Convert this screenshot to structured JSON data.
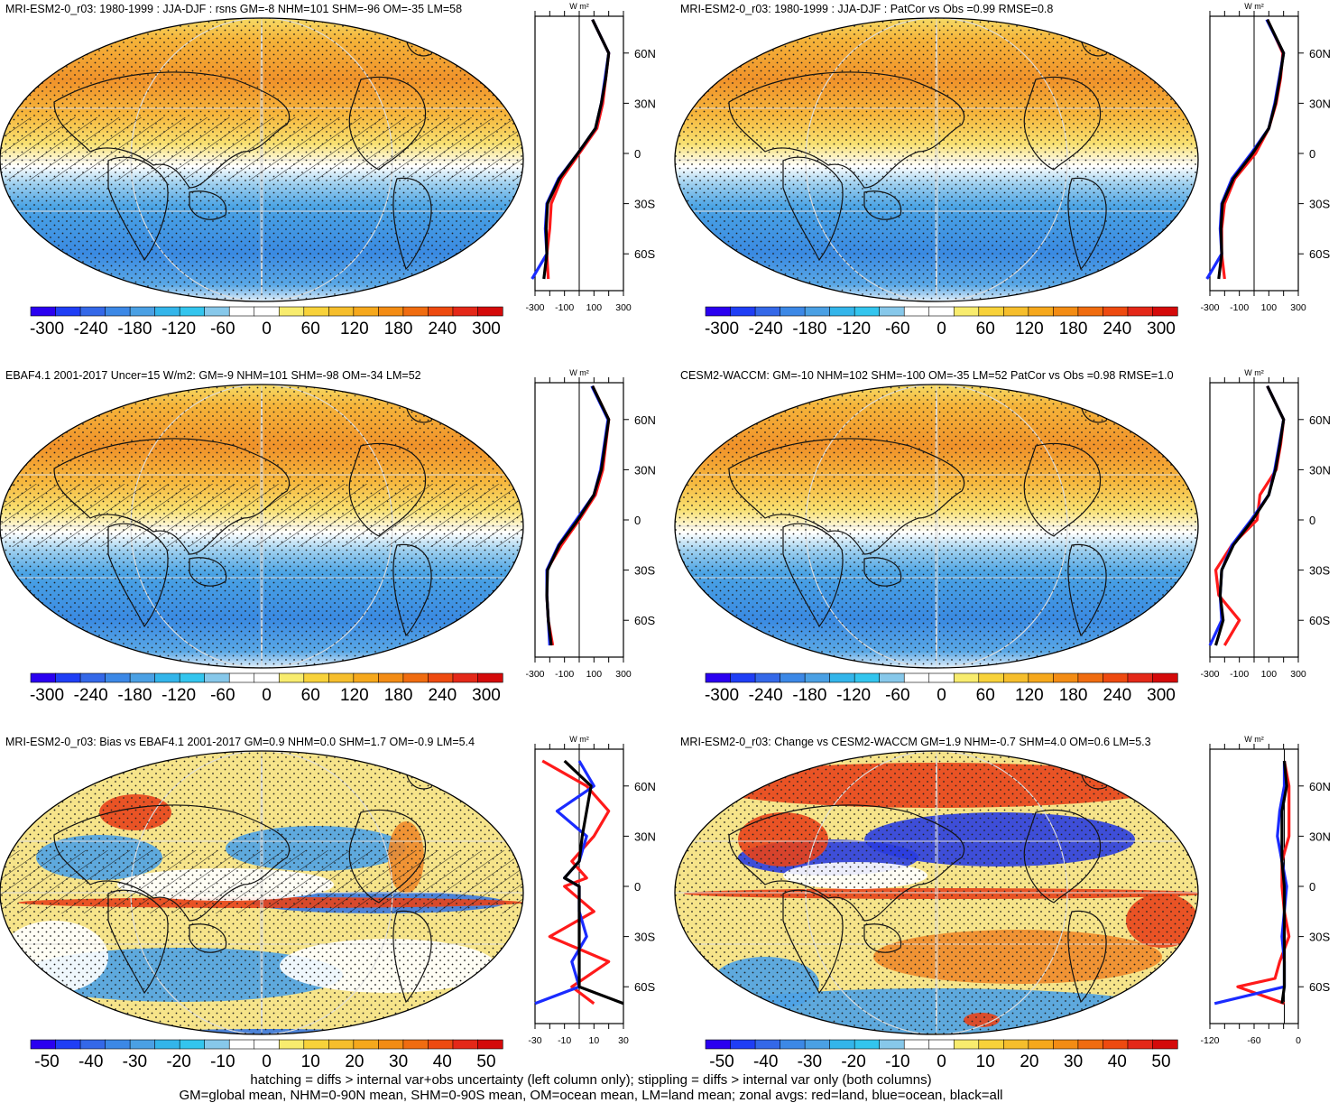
{
  "panels": [
    {
      "title": "MRI-ESM2-0_r03: 1980-1999 : JJA-DJF : rsns GM=-8 NHM=101 SHM=-96 OM=-35 LM=58",
      "map_colorscale": "warm-north",
      "hatching": true,
      "colorbar_labels": [
        "-300",
        "-240",
        "-180",
        "-120",
        "-60",
        "0",
        "60",
        "120",
        "180",
        "240",
        "300"
      ],
      "zonal_units": "W m²",
      "zonal_xticks": [
        "-300",
        "-100",
        "100",
        "300"
      ],
      "zonal_lat_labels": [
        "60N",
        "30N",
        "0",
        "30S",
        "60S"
      ]
    },
    {
      "title": "MRI-ESM2-0_r03: 1980-1999 : JJA-DJF : PatCor vs Obs =0.99 RMSE=0.8",
      "map_colorscale": "warm-north",
      "hatching": false,
      "colorbar_labels": [
        "-300",
        "-240",
        "-180",
        "-120",
        "-60",
        "0",
        "60",
        "120",
        "180",
        "240",
        "300"
      ],
      "zonal_units": "W m²",
      "zonal_xticks": [
        "-300",
        "-100",
        "100",
        "300"
      ],
      "zonal_lat_labels": [
        "60N",
        "30N",
        "0",
        "30S",
        "60S"
      ]
    },
    {
      "title": "EBAF4.1 2001-2017 Uncer=15 W/m2: GM=-9 NHM=101 SHM=-98 OM=-34 LM=52",
      "map_colorscale": "warm-north",
      "hatching": true,
      "colorbar_labels": [
        "-300",
        "-240",
        "-180",
        "-120",
        "-60",
        "0",
        "60",
        "120",
        "180",
        "240",
        "300"
      ],
      "zonal_units": "W m²",
      "zonal_xticks": [
        "-300",
        "-100",
        "100",
        "300"
      ],
      "zonal_lat_labels": [
        "60N",
        "30N",
        "0",
        "30S",
        "60S"
      ]
    },
    {
      "title": "CESM2-WACCM: GM=-10 NHM=102 SHM=-100 OM=-35 LM=52 PatCor vs Obs =0.98 RMSE=1.0",
      "map_colorscale": "warm-north",
      "hatching": false,
      "colorbar_labels": [
        "-300",
        "-240",
        "-180",
        "-120",
        "-60",
        "0",
        "60",
        "120",
        "180",
        "240",
        "300"
      ],
      "zonal_units": "W m²",
      "zonal_xticks": [
        "-300",
        "-100",
        "100",
        "300"
      ],
      "zonal_lat_labels": [
        "60N",
        "30N",
        "0",
        "30S",
        "60S"
      ]
    },
    {
      "title": "MRI-ESM2-0_r03: Bias vs EBAF4.1 2001-2017 GM=0.9 NHM=0.0 SHM=1.7 OM=-0.9 LM=5.4",
      "map_colorscale": "difference",
      "hatching": true,
      "colorbar_labels": [
        "-50",
        "-40",
        "-30",
        "-20",
        "-10",
        "0",
        "10",
        "20",
        "30",
        "40",
        "50"
      ],
      "zonal_units": "W m²",
      "zonal_xticks": [
        "-30",
        "-10",
        "10",
        "30"
      ],
      "zonal_lat_labels": [
        "60N",
        "30N",
        "0",
        "30S",
        "60S"
      ]
    },
    {
      "title": "MRI-ESM2-0_r03: Change vs CESM2-WACCM GM=1.9 NHM=-0.7 SHM=4.0 OM=0.6 LM=5.3",
      "map_colorscale": "difference",
      "hatching": false,
      "colorbar_labels": [
        "-50",
        "-40",
        "-30",
        "-20",
        "-10",
        "0",
        "10",
        "20",
        "30",
        "40",
        "50"
      ],
      "zonal_units": "W m²",
      "zonal_xticks": [
        "-120",
        "-60",
        "0"
      ],
      "zonal_lat_labels": [
        "60N",
        "30N",
        "0",
        "30S",
        "60S"
      ]
    }
  ],
  "colorbar_colors": [
    "#2a00f0",
    "#1f3ef5",
    "#3468e8",
    "#3c88e6",
    "#4aa0e4",
    "#33b5ea",
    "#33c5ee",
    "#87c8ea",
    "#ffffff",
    "#ffffff",
    "#f8ec6e",
    "#f8d23a",
    "#f6be2c",
    "#f6a81c",
    "#f38c14",
    "#f06c10",
    "#ee4a10",
    "#e42818",
    "#d40a0a"
  ],
  "series_colors": {
    "land": "#ff1a1a",
    "ocean": "#1a2bff",
    "all": "#000000"
  },
  "footer": [
    "hatching = diffs > internal var+obs uncertainty (left column only); stippling = diffs > internal var only (both columns)",
    "GM=global mean, NHM=0-90N mean, SHM=0-90S mean, OM=ocean mean, LM=land mean; zonal avgs: red=land, blue=ocean, black=all"
  ],
  "chart_data": [
    {
      "type": "heatmap",
      "panel": "rsns JJA-DJF MRI-ESM2-0_r03",
      "zlim": [
        -300,
        300
      ],
      "zonal_means": {
        "lat": [
          80,
          60,
          45,
          30,
          15,
          0,
          -15,
          -30,
          -45,
          -60,
          -75
        ],
        "land": [
          90,
          200,
          180,
          160,
          120,
          0,
          -120,
          -190,
          -200,
          -220,
          -210
        ],
        "ocean": [
          90,
          200,
          175,
          150,
          110,
          -10,
          -140,
          -220,
          -230,
          -220,
          -320
        ],
        "all": [
          90,
          200,
          180,
          150,
          110,
          -10,
          -135,
          -215,
          -225,
          -220,
          -240
        ]
      }
    },
    {
      "type": "heatmap",
      "panel": "rsns JJA-DJF PatCor",
      "zlim": [
        -300,
        300
      ],
      "zonal_means": {
        "lat": [
          80,
          60,
          45,
          30,
          15,
          0,
          -15,
          -30,
          -45,
          -60,
          -75
        ],
        "land": [
          90,
          195,
          180,
          150,
          100,
          10,
          -130,
          -200,
          -220,
          -220,
          -200
        ],
        "ocean": [
          85,
          200,
          170,
          140,
          100,
          -20,
          -150,
          -220,
          -230,
          -220,
          -320
        ],
        "all": [
          90,
          200,
          175,
          145,
          100,
          -10,
          -140,
          -215,
          -225,
          -220,
          -240
        ]
      }
    },
    {
      "type": "heatmap",
      "panel": "EBAF4.1 2001-2017",
      "zlim": [
        -300,
        300
      ],
      "zonal_means": {
        "lat": [
          80,
          60,
          45,
          30,
          15,
          0,
          -15,
          -30,
          -45,
          -60,
          -75
        ],
        "land": [
          90,
          200,
          180,
          160,
          110,
          0,
          -120,
          -220,
          -220,
          -210,
          -180
        ],
        "ocean": [
          85,
          195,
          170,
          145,
          100,
          -20,
          -140,
          -220,
          -220,
          -210,
          -200
        ],
        "all": [
          90,
          200,
          175,
          150,
          100,
          -10,
          -135,
          -215,
          -220,
          -210,
          -190
        ]
      }
    },
    {
      "type": "heatmap",
      "panel": "CESM2-WACCM",
      "zlim": [
        -300,
        300
      ],
      "zonal_means": {
        "lat": [
          80,
          60,
          45,
          30,
          15,
          0,
          -15,
          -30,
          -45,
          -60,
          -75
        ],
        "land": [
          90,
          200,
          180,
          150,
          40,
          20,
          -150,
          -260,
          -240,
          -100,
          -200
        ],
        "ocean": [
          90,
          200,
          170,
          140,
          100,
          -20,
          -150,
          -220,
          -230,
          -220,
          -300
        ],
        "all": [
          90,
          200,
          175,
          145,
          100,
          -10,
          -140,
          -220,
          -230,
          -210,
          -260
        ]
      }
    },
    {
      "type": "heatmap",
      "panel": "Bias vs EBAF4.1",
      "zlim": [
        -50,
        50
      ],
      "zonal_means": {
        "lat": [
          75,
          60,
          45,
          30,
          15,
          5,
          0,
          -15,
          -30,
          -45,
          -60,
          -70
        ],
        "land": [
          -25,
          5,
          20,
          10,
          -5,
          5,
          -10,
          10,
          -20,
          20,
          -5,
          10
        ],
        "ocean": [
          0,
          10,
          -15,
          5,
          0,
          -10,
          0,
          0,
          5,
          -5,
          0,
          -30
        ],
        "all": [
          -10,
          8,
          5,
          2,
          0,
          -10,
          0,
          0,
          0,
          0,
          0,
          30
        ]
      }
    },
    {
      "type": "heatmap",
      "panel": "Change vs CESM2-WACCM",
      "zlim": [
        -50,
        50
      ],
      "zonal_means": {
        "lat": [
          75,
          60,
          45,
          30,
          15,
          0,
          -15,
          -30,
          -45,
          -55,
          -60,
          -70
        ],
        "land": [
          0,
          10,
          10,
          10,
          -5,
          -5,
          0,
          10,
          -10,
          -20,
          -100,
          0
        ],
        "ocean": [
          0,
          0,
          -10,
          -15,
          -5,
          5,
          0,
          -5,
          0,
          0,
          0,
          -150
        ],
        "all": [
          0,
          5,
          -5,
          -5,
          -5,
          0,
          0,
          0,
          0,
          0,
          0,
          -5
        ]
      }
    }
  ]
}
